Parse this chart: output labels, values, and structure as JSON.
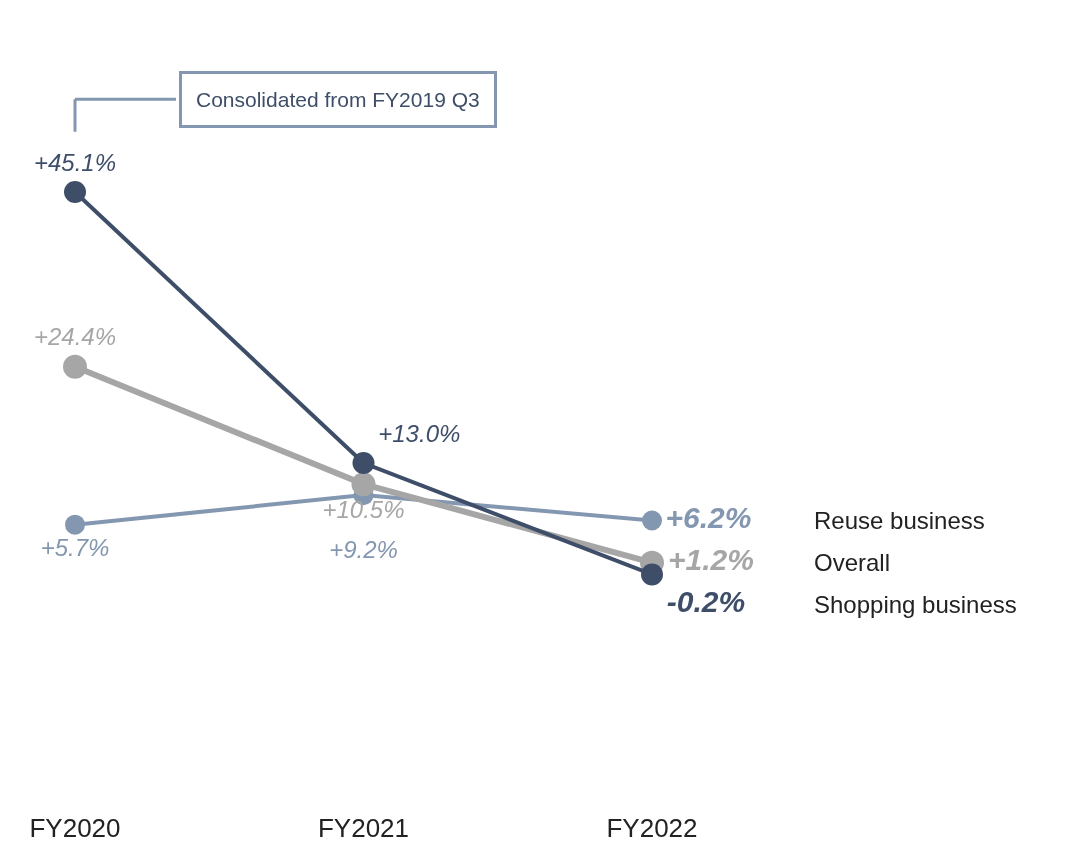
{
  "chart_data": {
    "type": "line",
    "categories": [
      "FY2020",
      "FY2021",
      "FY2022"
    ],
    "series": [
      {
        "name": "Reuse business",
        "color": "#8497b0",
        "values": [
          5.7,
          9.2,
          6.2
        ],
        "value_labels": [
          "+5.7%",
          "+9.2%",
          "+6.2%"
        ]
      },
      {
        "name": "Overall",
        "color": "#a6a6a6",
        "values": [
          24.4,
          10.5,
          1.2
        ],
        "value_labels": [
          "+24.4%",
          "+10.5%",
          "+1.2%"
        ]
      },
      {
        "name": "Shopping business",
        "color": "#3f4e68",
        "values": [
          45.1,
          13.0,
          -0.2
        ],
        "value_labels": [
          "+45.1%",
          "+13.0%",
          "-0.2%"
        ]
      }
    ],
    "annotations": [
      "Consolidated from FY2019 Q3"
    ],
    "marker": "circle",
    "line_style": "solid",
    "legend": false
  }
}
